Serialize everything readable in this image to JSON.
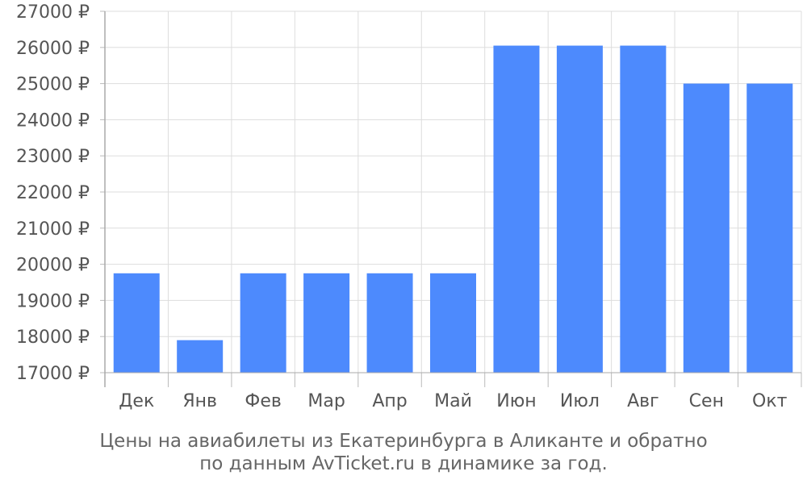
{
  "chart_data": {
    "type": "bar",
    "categories": [
      "Дек",
      "Янв",
      "Фев",
      "Мар",
      "Апр",
      "Май",
      "Июн",
      "Июл",
      "Авг",
      "Сен",
      "Окт"
    ],
    "values": [
      19750,
      17900,
      19750,
      19750,
      19750,
      19750,
      26050,
      26050,
      26050,
      25000,
      25000
    ],
    "ylim": [
      17000,
      27000
    ],
    "y_ticks": [
      17000,
      18000,
      19000,
      20000,
      21000,
      22000,
      23000,
      24000,
      25000,
      26000,
      27000
    ],
    "currency_suffix": " ₽",
    "bar_color": "#4d8afd",
    "grid": true,
    "caption_line1": "Цены на авиабилеты из Екатеринбурга в Аликанте и обратно",
    "caption_line2": "по данным AvTicket.ru в динамике за год."
  }
}
